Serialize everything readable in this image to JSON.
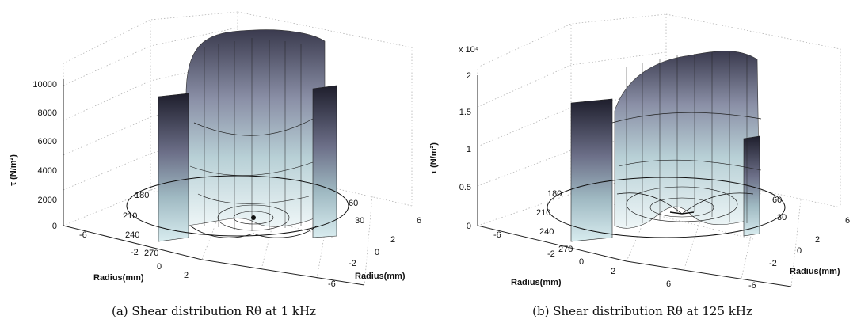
{
  "chart_data": [
    {
      "type": "surface3d",
      "caption": "(a) Shear distribution Rθ at 1 kHz",
      "zlabel": "τ (N/m²)",
      "xlabel": "Radius(mm)",
      "ylabel": "Radius(mm)",
      "z_ticks": [
        "0",
        "2000",
        "4000",
        "6000",
        "8000",
        "10000"
      ],
      "z_multiplier": "",
      "x_ticks": [
        "-6",
        "-2",
        "0",
        "2"
      ],
      "y_ticks": [
        "6",
        "2",
        "0",
        "-2",
        "-6"
      ],
      "angle_labels": [
        "180",
        "210",
        "240",
        "270",
        "60",
        "30"
      ],
      "zlim": [
        0,
        10000
      ]
    },
    {
      "type": "surface3d",
      "caption": "(b) Shear distribution Rθ at 125 kHz",
      "zlabel": "τ (N/m²)",
      "xlabel": "Radius(mm)",
      "ylabel": "Radius(mm)",
      "z_ticks": [
        "0",
        "0.5",
        "1",
        "1.5",
        "2"
      ],
      "z_multiplier": "x 10⁴",
      "x_ticks": [
        "-6",
        "-2",
        "0",
        "2",
        "6"
      ],
      "y_ticks": [
        "6",
        "2",
        "0",
        "-2",
        "-6"
      ],
      "angle_labels": [
        "180",
        "210",
        "240",
        "270",
        "60",
        "30"
      ],
      "zlim": [
        0,
        20000
      ]
    }
  ]
}
